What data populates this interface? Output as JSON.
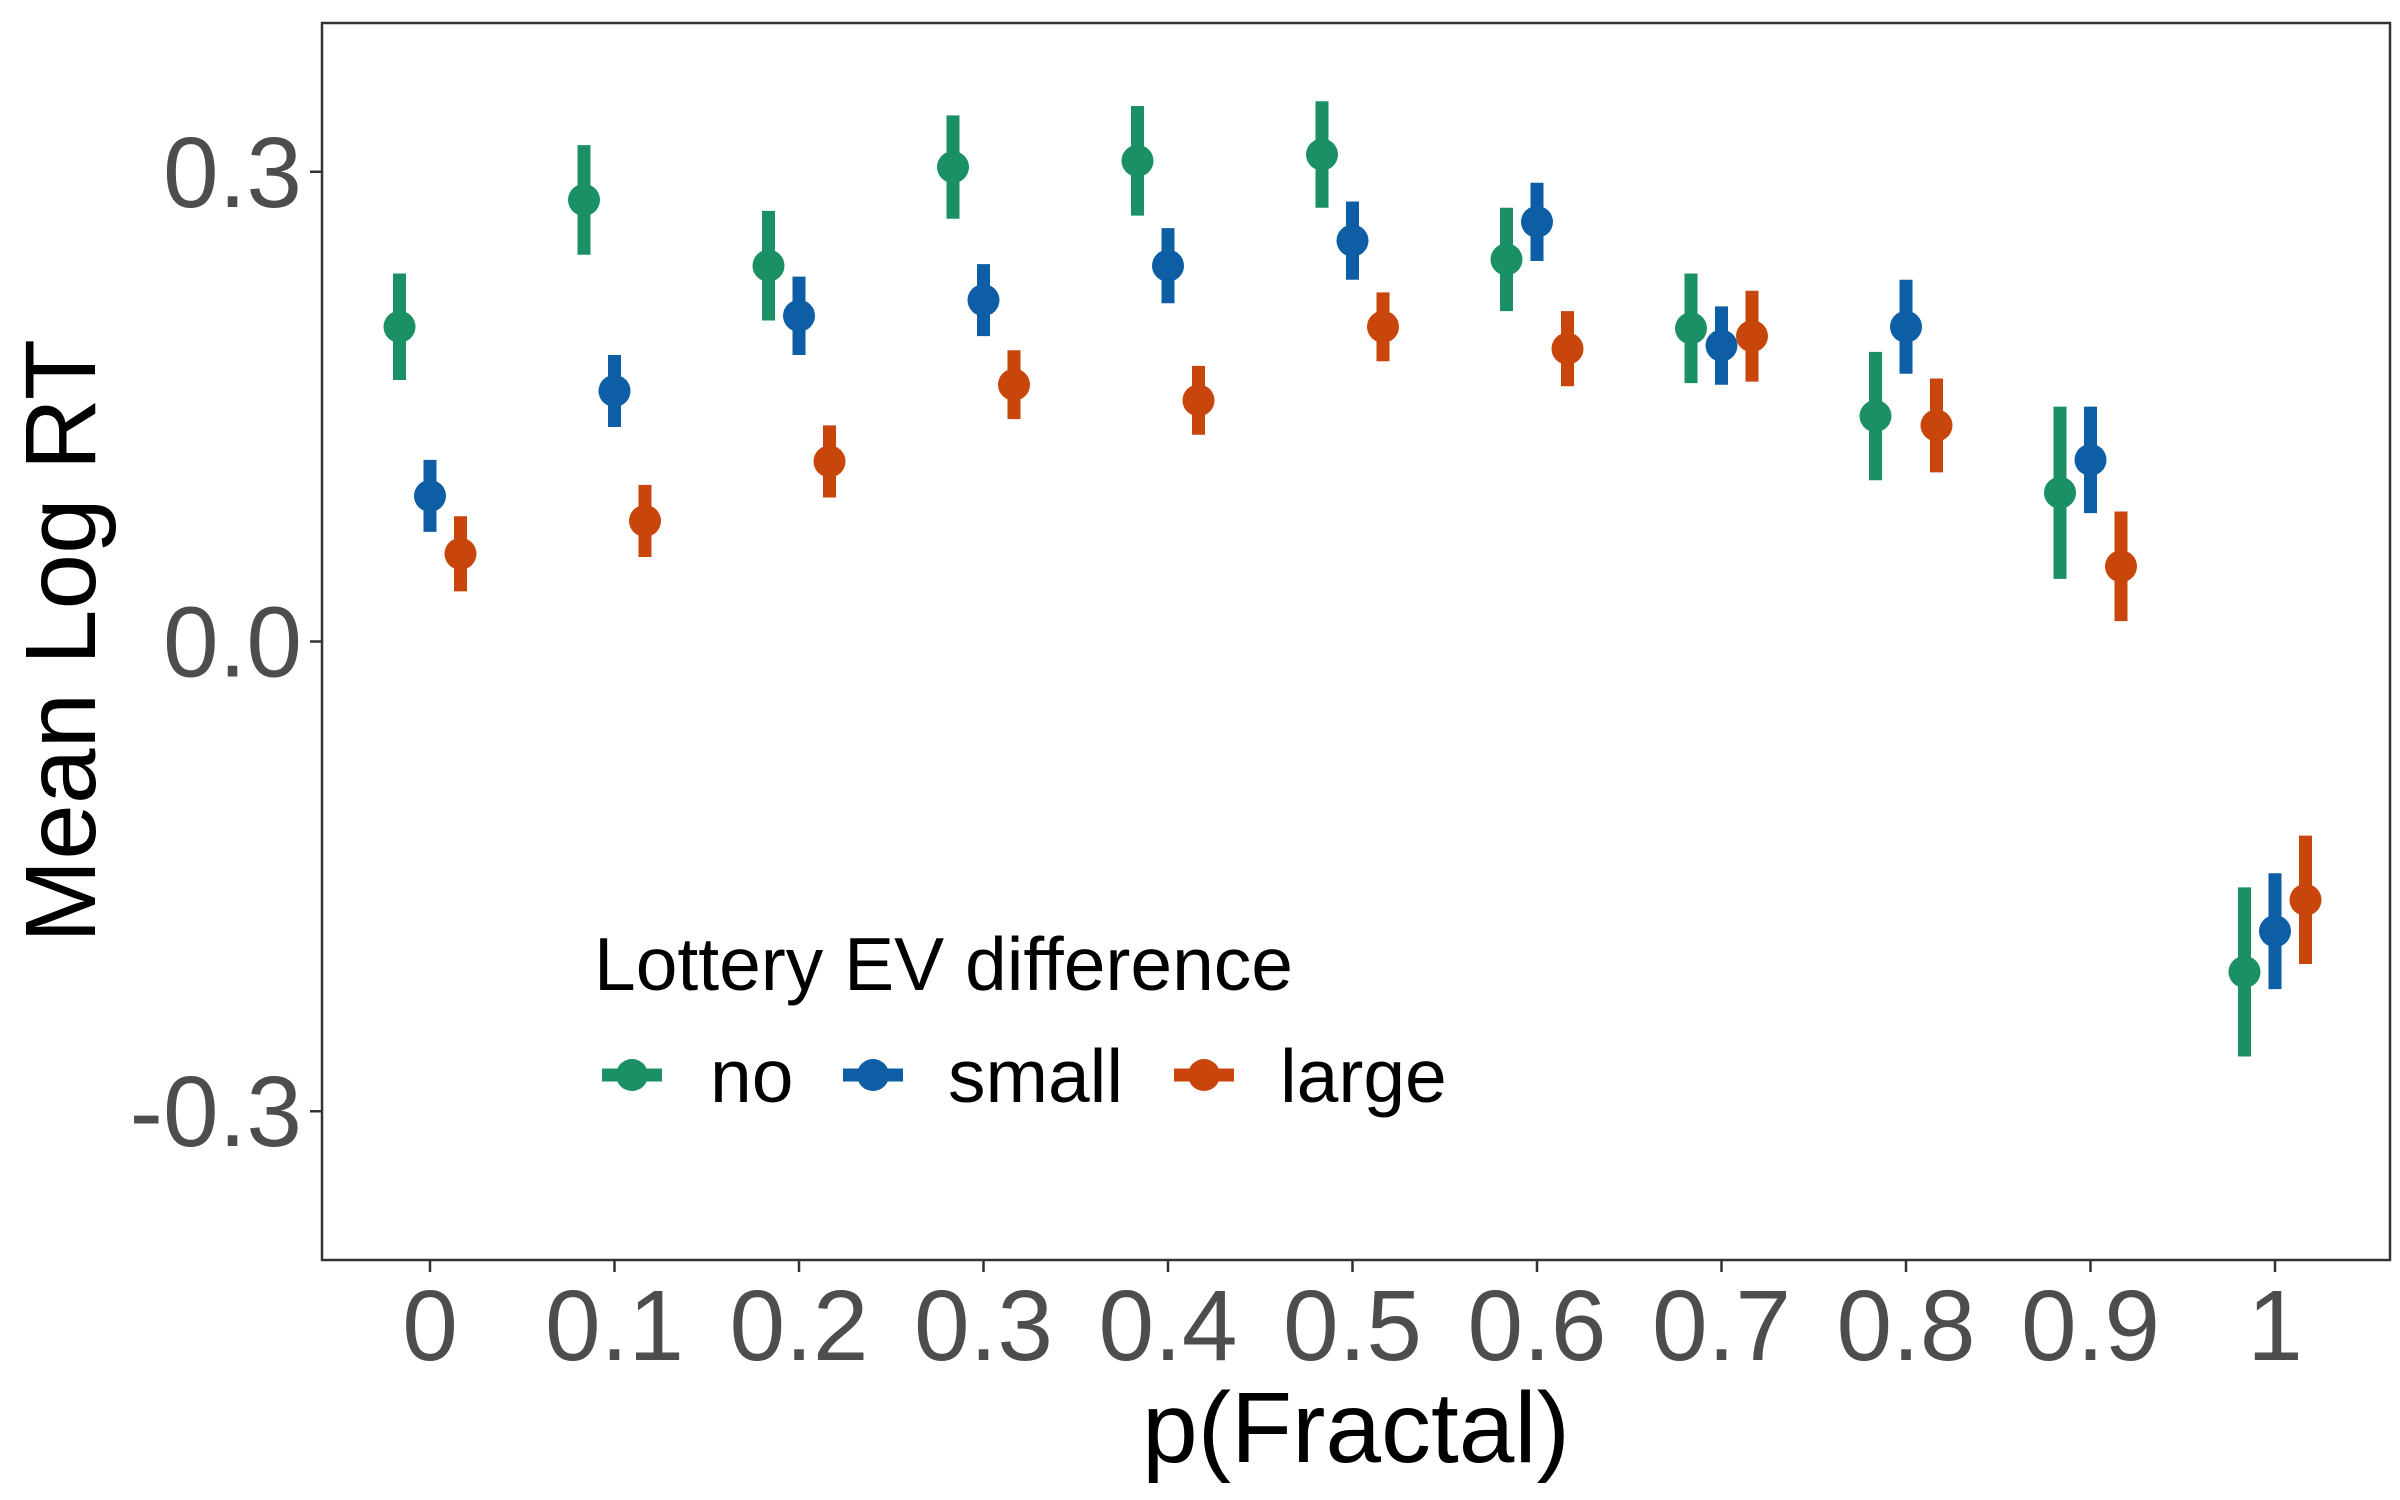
{
  "chart_data": {
    "type": "scatter",
    "xlabel": "p(Fractal)",
    "ylabel": "Mean Log RT",
    "x_ticks": [
      "0",
      "0.1",
      "0.2",
      "0.3",
      "0.4",
      "0.5",
      "0.6",
      "0.7",
      "0.8",
      "0.9",
      "1"
    ],
    "y_ticks": [
      "0.3",
      "0.0",
      "-0.3"
    ],
    "y_tick_values": [
      0.3,
      0.0,
      -0.3
    ],
    "ylim": [
      -0.395,
      0.395
    ],
    "x_categories": [
      0,
      0.1,
      0.2,
      0.3,
      0.4,
      0.5,
      0.6,
      0.7,
      0.8,
      0.9,
      1
    ],
    "grid": false,
    "legend": {
      "title": "Lottery EV difference",
      "position": "bottom-left-inside",
      "orientation": "horizontal"
    },
    "series": [
      {
        "name": "no",
        "color": "#1b9065",
        "points": [
          {
            "x": 0,
            "y": 0.201,
            "lo": 0.167,
            "hi": 0.235
          },
          {
            "x": 0.1,
            "y": 0.282,
            "lo": 0.247,
            "hi": 0.317
          },
          {
            "x": 0.2,
            "y": 0.24,
            "lo": 0.205,
            "hi": 0.275
          },
          {
            "x": 0.3,
            "y": 0.303,
            "lo": 0.27,
            "hi": 0.336
          },
          {
            "x": 0.4,
            "y": 0.307,
            "lo": 0.272,
            "hi": 0.342
          },
          {
            "x": 0.5,
            "y": 0.311,
            "lo": 0.277,
            "hi": 0.345
          },
          {
            "x": 0.6,
            "y": 0.244,
            "lo": 0.211,
            "hi": 0.277
          },
          {
            "x": 0.7,
            "y": 0.2,
            "lo": 0.165,
            "hi": 0.235
          },
          {
            "x": 0.8,
            "y": 0.144,
            "lo": 0.103,
            "hi": 0.185
          },
          {
            "x": 0.9,
            "y": 0.095,
            "lo": 0.04,
            "hi": 0.15
          },
          {
            "x": 1,
            "y": -0.211,
            "lo": -0.265,
            "hi": -0.157
          }
        ]
      },
      {
        "name": "small",
        "color": "#0d5ea5",
        "points": [
          {
            "x": 0,
            "y": 0.093,
            "lo": 0.07,
            "hi": 0.116
          },
          {
            "x": 0.1,
            "y": 0.16,
            "lo": 0.137,
            "hi": 0.183
          },
          {
            "x": 0.2,
            "y": 0.208,
            "lo": 0.183,
            "hi": 0.233
          },
          {
            "x": 0.3,
            "y": 0.218,
            "lo": 0.195,
            "hi": 0.241
          },
          {
            "x": 0.4,
            "y": 0.24,
            "lo": 0.216,
            "hi": 0.264
          },
          {
            "x": 0.5,
            "y": 0.256,
            "lo": 0.231,
            "hi": 0.281
          },
          {
            "x": 0.6,
            "y": 0.268,
            "lo": 0.243,
            "hi": 0.293
          },
          {
            "x": 0.7,
            "y": 0.189,
            "lo": 0.164,
            "hi": 0.214
          },
          {
            "x": 0.8,
            "y": 0.201,
            "lo": 0.171,
            "hi": 0.231
          },
          {
            "x": 0.9,
            "y": 0.116,
            "lo": 0.082,
            "hi": 0.15
          },
          {
            "x": 1,
            "y": -0.185,
            "lo": -0.222,
            "hi": -0.148
          }
        ]
      },
      {
        "name": "large",
        "color": "#c8460b",
        "points": [
          {
            "x": 0,
            "y": 0.056,
            "lo": 0.032,
            "hi": 0.08
          },
          {
            "x": 0.1,
            "y": 0.077,
            "lo": 0.054,
            "hi": 0.1
          },
          {
            "x": 0.2,
            "y": 0.115,
            "lo": 0.092,
            "hi": 0.138
          },
          {
            "x": 0.3,
            "y": 0.164,
            "lo": 0.142,
            "hi": 0.186
          },
          {
            "x": 0.4,
            "y": 0.154,
            "lo": 0.132,
            "hi": 0.176
          },
          {
            "x": 0.5,
            "y": 0.201,
            "lo": 0.179,
            "hi": 0.223
          },
          {
            "x": 0.6,
            "y": 0.187,
            "lo": 0.163,
            "hi": 0.211
          },
          {
            "x": 0.7,
            "y": 0.195,
            "lo": 0.166,
            "hi": 0.224
          },
          {
            "x": 0.8,
            "y": 0.138,
            "lo": 0.108,
            "hi": 0.168
          },
          {
            "x": 0.9,
            "y": 0.048,
            "lo": 0.013,
            "hi": 0.083
          },
          {
            "x": 1,
            "y": -0.165,
            "lo": -0.206,
            "hi": -0.124
          }
        ]
      }
    ]
  }
}
